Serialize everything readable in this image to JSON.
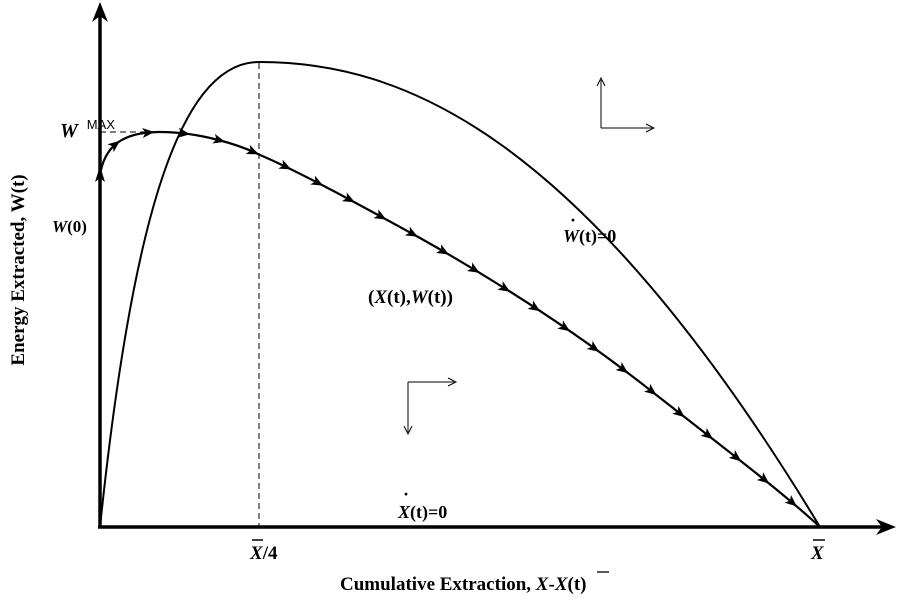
{
  "axes": {
    "x_title_prefix": "Cumulative Extraction, ",
    "x_title_formula_x": "X",
    "x_title_formula_mid": "-",
    "x_title_formula_xt": "X",
    "x_title_formula_t": "(t)",
    "y_title": "Energy Extracted, W(t)",
    "x_tick_quarter_sym": "X",
    "x_tick_quarter_suffix": "/4",
    "x_tick_end_sym": "X"
  },
  "labels": {
    "w_max_sym": "W",
    "w_max_sup": "MAX",
    "w0_sym": "W",
    "w0_arg": "(0)",
    "wdot_sym": "W",
    "wdot_rest": "(t)=0",
    "xdot_sym": "X",
    "xdot_rest": "(t)=0",
    "traj_open": "(",
    "traj_x": "X",
    "traj_mid": "(t),",
    "traj_w": "W",
    "traj_close": "(t))"
  }
}
